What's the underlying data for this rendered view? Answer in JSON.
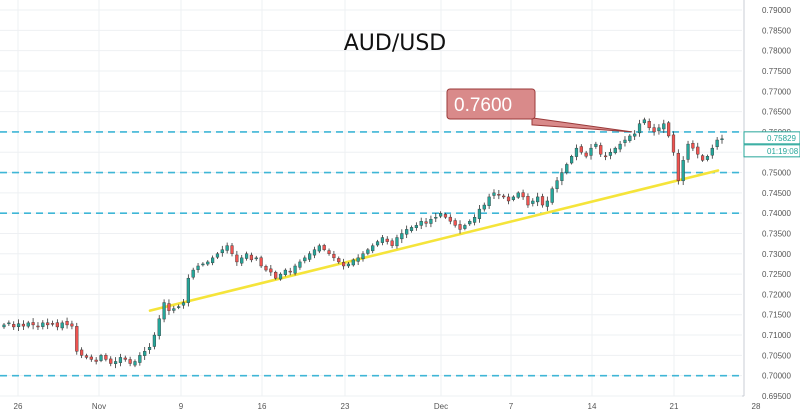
{
  "chart_data": {
    "type": "candlestick",
    "title": "AUD/USD",
    "xlabel": "",
    "ylabel": "",
    "ylim": [
      0.695,
      0.79
    ],
    "grid": true,
    "y_ticks": [
      "0.69500",
      "0.70000",
      "0.70500",
      "0.71000",
      "0.71500",
      "0.72000",
      "0.72500",
      "0.73000",
      "0.73500",
      "0.74000",
      "0.74500",
      "0.75000",
      "0.75500",
      "0.76000",
      "0.76500",
      "0.77000",
      "0.77500",
      "0.78000",
      "0.78500",
      "0.79000"
    ],
    "x_ticks": [
      "26",
      "Nov",
      "9",
      "16",
      "23",
      "Dec",
      "7",
      "14",
      "21",
      "28"
    ],
    "last_price": "0.75829",
    "countdown": "01:19:08",
    "callout": "0.7600",
    "horizontal_levels": [
      0.76,
      0.75,
      0.74,
      0.7
    ],
    "trendline": {
      "from": [
        "Nov 6",
        0.716
      ],
      "to": [
        "Dec 24",
        0.7505
      ]
    },
    "series": [
      {
        "values": [
          0.7125,
          0.713,
          0.712,
          0.7128,
          0.7122,
          0.713,
          0.7125,
          0.7122,
          0.713,
          0.7125,
          0.7128,
          0.712,
          0.713,
          0.7125,
          0.7122,
          0.706,
          0.705,
          0.7045,
          0.704,
          0.7035,
          0.705,
          0.704,
          0.703,
          0.7035,
          0.7045,
          0.704,
          0.703,
          0.7035,
          0.705,
          0.706,
          0.707,
          0.71,
          0.714,
          0.718,
          0.716,
          0.7165,
          0.717,
          0.718,
          0.724,
          0.726,
          0.727,
          0.7275,
          0.728,
          0.729,
          0.73,
          0.731,
          0.732,
          0.73,
          0.728,
          0.729,
          0.73,
          0.7285,
          0.729,
          0.727,
          0.726,
          0.7255,
          0.724,
          0.725,
          0.726,
          0.7255,
          0.727,
          0.728,
          0.729,
          0.73,
          0.731,
          0.732,
          0.731,
          0.73,
          0.729,
          0.728,
          0.727,
          0.7275,
          0.7285,
          0.729,
          0.73,
          0.731,
          0.732,
          0.733,
          0.734,
          0.733,
          0.732,
          0.734,
          0.735,
          0.736,
          0.7365,
          0.737,
          0.738,
          0.7375,
          0.7385,
          0.739,
          0.74,
          0.739,
          0.738,
          0.737,
          0.736,
          0.737,
          0.738,
          0.739,
          0.741,
          0.742,
          0.744,
          0.745,
          0.7445,
          0.744,
          0.743,
          0.744,
          0.745,
          0.744,
          0.742,
          0.743,
          0.744,
          0.742,
          0.743,
          0.746,
          0.748,
          0.75,
          0.752,
          0.754,
          0.756,
          0.755,
          0.754,
          0.756,
          0.757,
          0.7545,
          0.754,
          0.755,
          0.756,
          0.757,
          0.758,
          0.759,
          0.7595,
          0.762,
          0.763,
          0.761,
          0.76,
          0.761,
          0.762,
          0.759,
          0.755,
          0.748,
          0.753,
          0.757,
          0.756,
          0.7545,
          0.753,
          0.754,
          0.756,
          0.758,
          0.7583
        ]
      }
    ]
  }
}
